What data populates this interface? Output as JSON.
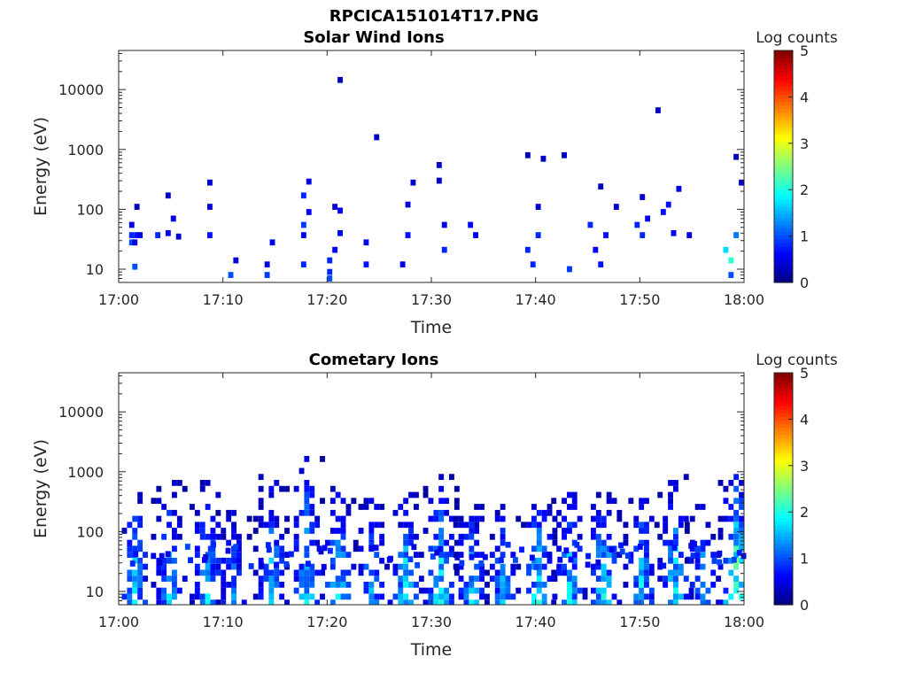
{
  "figure_title": "RPCICA151014T17.PNG",
  "chart_data": [
    {
      "type": "heatmap",
      "title": "Solar Wind Ions",
      "xlabel": "Time",
      "ylabel": "Energy (eV)",
      "x_ticks": [
        "17:00",
        "17:10",
        "17:20",
        "17:30",
        "17:40",
        "17:50",
        "18:00"
      ],
      "x_range_minutes": [
        0,
        60
      ],
      "y_scale": "log",
      "y_ticks": [
        "10",
        "100",
        "1000",
        "10000"
      ],
      "y_range": [
        6,
        45000
      ],
      "colorbar": {
        "label": "Log counts",
        "range": [
          0,
          5
        ],
        "ticks": [
          "0",
          "1",
          "2",
          "3",
          "4",
          "5"
        ],
        "colormap": "jet"
      },
      "x_unit": "minutes after 17:00",
      "cells": [
        [
          1,
          55,
          0.5
        ],
        [
          1,
          28,
          1.0
        ],
        [
          1,
          37,
          0.8
        ],
        [
          1.3,
          28,
          0.5
        ],
        [
          1.3,
          11,
          1.0
        ],
        [
          1.5,
          37,
          0.7
        ],
        [
          1.5,
          110,
          0.3
        ],
        [
          1.8,
          37,
          0.5
        ],
        [
          3.5,
          37,
          0.8
        ],
        [
          4.5,
          40,
          0.6
        ],
        [
          4.5,
          170,
          0.4
        ],
        [
          5,
          70,
          0.5
        ],
        [
          5.5,
          35,
          0.4
        ],
        [
          8.5,
          110,
          0.4
        ],
        [
          8.5,
          37,
          0.7
        ],
        [
          8.5,
          280,
          0.4
        ],
        [
          10.5,
          8,
          1.0
        ],
        [
          11,
          14,
          0.4
        ],
        [
          14,
          8,
          0.9
        ],
        [
          14,
          12,
          0.5
        ],
        [
          14.5,
          28,
          0.5
        ],
        [
          17.5,
          170,
          0.8
        ],
        [
          17.5,
          55,
          0.9
        ],
        [
          17.5,
          37,
          0.5
        ],
        [
          17.5,
          12,
          0.8
        ],
        [
          18,
          290,
          0.5
        ],
        [
          18,
          90,
          0.6
        ],
        [
          20,
          7,
          1.0
        ],
        [
          20,
          9,
          0.8
        ],
        [
          20,
          14,
          0.8
        ],
        [
          20.5,
          21,
          0.6
        ],
        [
          20.5,
          110,
          0.4
        ],
        [
          21,
          14500,
          0.3
        ],
        [
          21,
          95,
          0.6
        ],
        [
          21,
          40,
          0.6
        ],
        [
          23.5,
          12,
          0.7
        ],
        [
          23.5,
          28,
          0.5
        ],
        [
          24.5,
          1600,
          0.3
        ],
        [
          27,
          12,
          0.5
        ],
        [
          27.5,
          37,
          0.7
        ],
        [
          27.5,
          120,
          0.4
        ],
        [
          28,
          280,
          0.4
        ],
        [
          30.5,
          550,
          0.4
        ],
        [
          30.5,
          300,
          0.4
        ],
        [
          31,
          55,
          0.5
        ],
        [
          31,
          21,
          0.8
        ],
        [
          33.5,
          55,
          0.6
        ],
        [
          34,
          37,
          0.5
        ],
        [
          39,
          21,
          0.8
        ],
        [
          39,
          800,
          0.3
        ],
        [
          39.5,
          12,
          0.8
        ],
        [
          40,
          37,
          0.8
        ],
        [
          40,
          110,
          0.4
        ],
        [
          40.5,
          700,
          0.3
        ],
        [
          42.5,
          800,
          0.3
        ],
        [
          43,
          10,
          0.9
        ],
        [
          45,
          55,
          0.8
        ],
        [
          45.5,
          21,
          0.6
        ],
        [
          46,
          12,
          0.7
        ],
        [
          46,
          240,
          0.3
        ],
        [
          46.5,
          37,
          0.7
        ],
        [
          47.5,
          110,
          0.4
        ],
        [
          49.5,
          55,
          0.8
        ],
        [
          50,
          37,
          0.8
        ],
        [
          50,
          160,
          0.4
        ],
        [
          50.5,
          70,
          0.6
        ],
        [
          51.5,
          4500,
          0.3
        ],
        [
          52,
          90,
          0.7
        ],
        [
          52.5,
          120,
          0.7
        ],
        [
          53.5,
          220,
          0.5
        ],
        [
          53,
          40,
          0.6
        ],
        [
          54.5,
          37,
          0.5
        ],
        [
          58,
          21,
          1.7
        ],
        [
          58.5,
          14,
          2.1
        ],
        [
          58.5,
          8,
          1.0
        ],
        [
          59,
          37,
          1.2
        ],
        [
          59,
          750,
          0.3
        ],
        [
          59.5,
          280,
          0.4
        ]
      ]
    },
    {
      "type": "heatmap",
      "title": "Cometary Ions",
      "xlabel": "Time",
      "ylabel": "Energy (eV)",
      "x_ticks": [
        "17:00",
        "17:10",
        "17:20",
        "17:30",
        "17:40",
        "17:50",
        "18:00"
      ],
      "x_range_minutes": [
        0,
        60
      ],
      "y_scale": "log",
      "y_ticks": [
        "10",
        "100",
        "1000",
        "10000"
      ],
      "y_range": [
        6,
        45000
      ],
      "colorbar": {
        "label": "Log counts",
        "range": [
          0,
          5
        ],
        "ticks": [
          "0",
          "1",
          "2",
          "3",
          "4",
          "5"
        ],
        "colormap": "jet"
      },
      "x_unit": "minutes after 17:00",
      "bursts": [
        {
          "t": 1.3,
          "peak": 2.0,
          "top": 450
        },
        {
          "t": 4.6,
          "peak": 1.8,
          "top": 800
        },
        {
          "t": 8.3,
          "peak": 1.9,
          "top": 700
        },
        {
          "t": 10.8,
          "peak": 1.5,
          "top": 250
        },
        {
          "t": 14.4,
          "peak": 1.9,
          "top": 900
        },
        {
          "t": 17.8,
          "peak": 2.0,
          "top": 1700
        },
        {
          "t": 20.8,
          "peak": 2.1,
          "top": 600
        },
        {
          "t": 24.0,
          "peak": 1.8,
          "top": 400
        },
        {
          "t": 27.3,
          "peak": 2.0,
          "top": 450
        },
        {
          "t": 30.7,
          "peak": 2.1,
          "top": 900
        },
        {
          "t": 33.6,
          "peak": 1.9,
          "top": 400
        },
        {
          "t": 36.6,
          "peak": 1.7,
          "top": 300
        },
        {
          "t": 40.1,
          "peak": 2.3,
          "top": 500
        },
        {
          "t": 43.0,
          "peak": 2.0,
          "top": 450
        },
        {
          "t": 46.3,
          "peak": 2.2,
          "top": 500
        },
        {
          "t": 49.9,
          "peak": 2.0,
          "top": 400
        },
        {
          "t": 53.2,
          "peak": 2.1,
          "top": 900
        },
        {
          "t": 55.8,
          "peak": 1.7,
          "top": 300
        },
        {
          "t": 59.0,
          "peak": 2.8,
          "top": 900
        }
      ]
    }
  ]
}
